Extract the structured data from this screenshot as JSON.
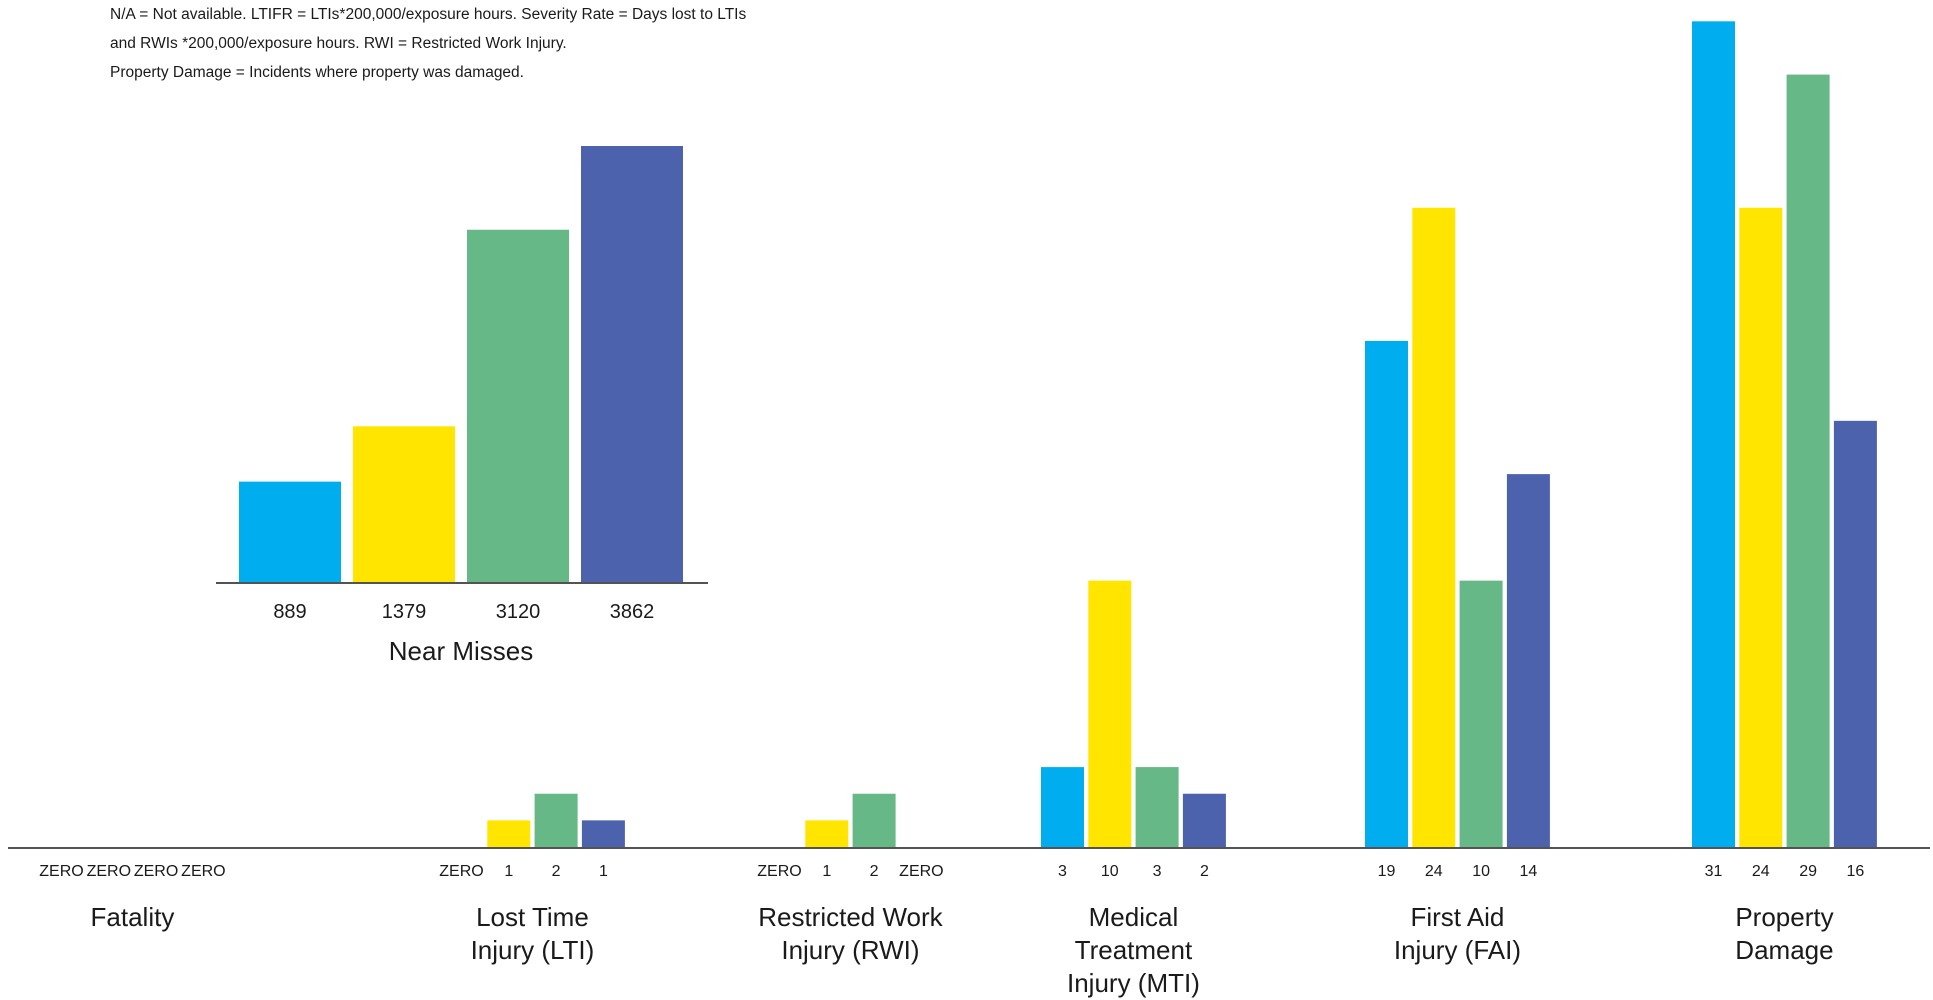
{
  "notes": [
    "N/A = Not available. LTIFR = LTIs*200,000/exposure hours. Severity Rate = Days lost to LTIs",
    "and RWIs *200,000/exposure hours. RWI = Restricted Work Injury.",
    "Property Damage = Incidents where property was damaged."
  ],
  "colors": {
    "series_1": "#00aeef",
    "series_2": "#ffe500",
    "series_3": "#66b887",
    "series_4": "#4c62ad",
    "axis": "#1a1a1a"
  },
  "chart_data": [
    {
      "type": "bar",
      "title": "",
      "categories": [
        [
          "Fatality"
        ],
        [
          "Lost Time",
          "Injury (LTI)"
        ],
        [
          "Restricted Work",
          "Injury (RWI)"
        ],
        [
          "Medical",
          "Treatment",
          "Injury (MTI)"
        ],
        [
          "First Aid",
          "Injury (FAI)"
        ],
        [
          "Property",
          "Damage"
        ]
      ],
      "series": [
        {
          "values": [
            0,
            0,
            0,
            3,
            19,
            31
          ]
        },
        {
          "values": [
            0,
            1,
            1,
            10,
            24,
            24
          ]
        },
        {
          "values": [
            0,
            2,
            2,
            3,
            10,
            29
          ]
        },
        {
          "values": [
            0,
            1,
            0,
            2,
            14,
            16
          ]
        }
      ],
      "value_labels": [
        [
          "ZERO",
          "ZERO",
          "ZERO",
          "ZERO"
        ],
        [
          "ZERO",
          "1",
          "2",
          "1"
        ],
        [
          "ZERO",
          "1",
          "2",
          "ZERO"
        ],
        [
          "3",
          "10",
          "3",
          "2"
        ],
        [
          "19",
          "24",
          "10",
          "14"
        ],
        [
          "31",
          "24",
          "29",
          "16"
        ]
      ],
      "ylim": [
        0,
        31.5
      ],
      "grid": false,
      "legend": "none"
    },
    {
      "type": "bar",
      "title": "",
      "categories": [
        "Near Misses"
      ],
      "series": [
        {
          "values": [
            889
          ]
        },
        {
          "values": [
            1379
          ]
        },
        {
          "values": [
            3120
          ]
        },
        {
          "values": [
            3862
          ]
        }
      ],
      "value_labels": [
        "889",
        "1379",
        "3120",
        "3862"
      ],
      "ylim": [
        0,
        3862
      ],
      "grid": false,
      "legend": "none"
    }
  ]
}
